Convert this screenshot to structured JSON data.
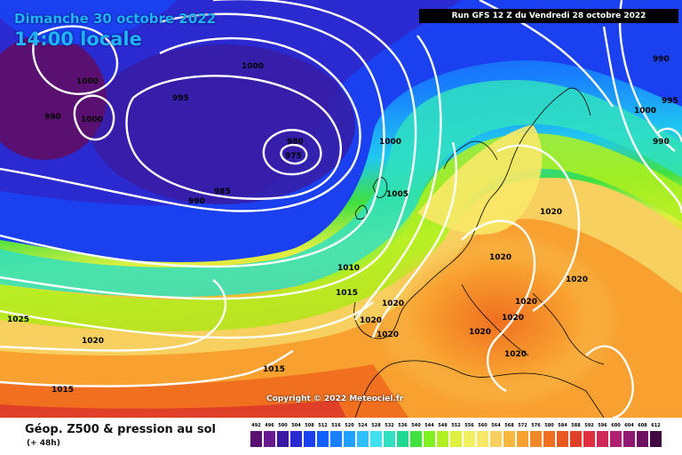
{
  "header": {
    "date_title": "Dimanche 30 octobre 2022",
    "time_title": "14:00 locale",
    "run_info": "Run GFS 12 Z du Vendredi 28 octobre 2022"
  },
  "copyright": "Copyright © 2022 Meteociel.fr",
  "footer": {
    "product": "Géop. Z500 & pression au sol",
    "horizon": "(+ 48h)"
  },
  "pressure_labels": [
    "1000",
    "1000",
    "990",
    "1000",
    "995",
    "1000",
    "980",
    "975",
    "985",
    "990",
    "1000",
    "1005",
    "1010",
    "1015",
    "1020",
    "1020",
    "1020",
    "1020",
    "1020",
    "1020",
    "1020",
    "1020",
    "1020",
    "1020",
    "1015",
    "1025",
    "1020",
    "1015",
    "990",
    "995",
    "1000",
    "990"
  ],
  "color_scale": {
    "values": [
      "492",
      "496",
      "500",
      "504",
      "508",
      "512",
      "516",
      "520",
      "524",
      "528",
      "532",
      "536",
      "540",
      "544",
      "548",
      "552",
      "556",
      "560",
      "564",
      "568",
      "572",
      "576",
      "580",
      "584",
      "588",
      "592",
      "596",
      "600",
      "604",
      "608",
      "612"
    ],
    "colors": [
      "#5a1070",
      "#6a1a90",
      "#3a1aa0",
      "#2a2ad0",
      "#1a40f0",
      "#1060ff",
      "#1880ff",
      "#20a0ff",
      "#30c0ff",
      "#40e0f0",
      "#30e0c0",
      "#20d890",
      "#40e040",
      "#80f020",
      "#b0f020",
      "#e0f040",
      "#f0f060",
      "#f8e868",
      "#f8d060",
      "#f8b840",
      "#f8a030",
      "#f08828",
      "#f07020",
      "#e85820",
      "#e04028",
      "#e03040",
      "#d02858",
      "#b02070",
      "#901870",
      "#701060",
      "#400840"
    ]
  }
}
